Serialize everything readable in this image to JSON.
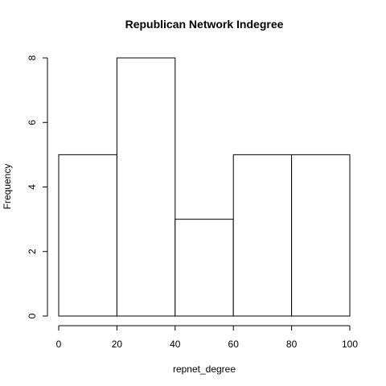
{
  "chart_data": {
    "type": "bar",
    "title": "Republican Network Indegree",
    "xlabel": "repnet_degree",
    "ylabel": "Frequency",
    "bins": [
      {
        "from": 0,
        "to": 20,
        "count": 5
      },
      {
        "from": 20,
        "to": 40,
        "count": 8
      },
      {
        "from": 40,
        "to": 60,
        "count": 3
      },
      {
        "from": 60,
        "to": 80,
        "count": 5
      },
      {
        "from": 80,
        "to": 100,
        "count": 5
      }
    ],
    "xlim": [
      0,
      100
    ],
    "ylim": [
      0,
      8
    ],
    "x_ticks": [
      0,
      20,
      40,
      60,
      80,
      100
    ],
    "y_ticks": [
      0,
      2,
      4,
      6,
      8
    ],
    "grid": false,
    "bar_fill": "#ffffff",
    "bar_stroke": "#000000"
  }
}
